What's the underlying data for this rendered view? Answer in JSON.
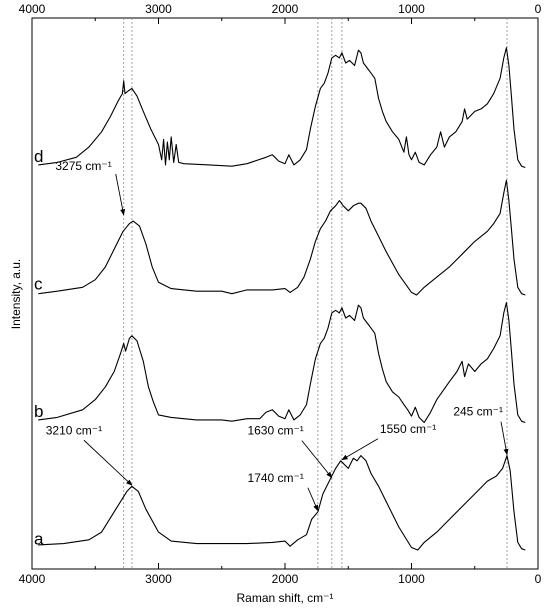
{
  "chart_data": {
    "type": "line",
    "title": "",
    "xlabel": "Raman shift, cm⁻¹",
    "ylabel": "Intensity, a.u.",
    "xlim": [
      4000,
      0
    ],
    "x_reversed": true,
    "x_ticks": [
      4000,
      3000,
      2000,
      1000,
      0
    ],
    "top_axis_ticks": [
      4000,
      3000,
      2000,
      1000,
      0
    ],
    "grid": false,
    "ylim": [
      0,
      4.0
    ],
    "reference_lines_x": [
      3275,
      3210,
      1740,
      1630,
      1550,
      245
    ],
    "series": [
      {
        "name": "a",
        "offset": 0,
        "points": [
          [
            3950,
            0.04
          ],
          [
            3750,
            0.05
          ],
          [
            3550,
            0.08
          ],
          [
            3450,
            0.14
          ],
          [
            3350,
            0.3
          ],
          [
            3250,
            0.46
          ],
          [
            3210,
            0.5
          ],
          [
            3160,
            0.46
          ],
          [
            3100,
            0.32
          ],
          [
            3000,
            0.14
          ],
          [
            2900,
            0.07
          ],
          [
            2700,
            0.05
          ],
          [
            2500,
            0.05
          ],
          [
            2300,
            0.05
          ],
          [
            2100,
            0.06
          ],
          [
            2000,
            0.07
          ],
          [
            1960,
            0.03
          ],
          [
            1900,
            0.08
          ],
          [
            1830,
            0.12
          ],
          [
            1790,
            0.24
          ],
          [
            1740,
            0.3
          ],
          [
            1700,
            0.44
          ],
          [
            1640,
            0.56
          ],
          [
            1600,
            0.64
          ],
          [
            1560,
            0.7
          ],
          [
            1540,
            0.68
          ],
          [
            1500,
            0.64
          ],
          [
            1460,
            0.72
          ],
          [
            1430,
            0.7
          ],
          [
            1400,
            0.74
          ],
          [
            1360,
            0.7
          ],
          [
            1320,
            0.6
          ],
          [
            1260,
            0.5
          ],
          [
            1200,
            0.38
          ],
          [
            1100,
            0.18
          ],
          [
            1000,
            0.02
          ],
          [
            950,
            0.0
          ],
          [
            900,
            0.06
          ],
          [
            800,
            0.14
          ],
          [
            700,
            0.24
          ],
          [
            600,
            0.34
          ],
          [
            500,
            0.44
          ],
          [
            400,
            0.54
          ],
          [
            330,
            0.58
          ],
          [
            280,
            0.64
          ],
          [
            245,
            0.74
          ],
          [
            220,
            0.62
          ],
          [
            190,
            0.3
          ],
          [
            160,
            0.06
          ],
          [
            130,
            0.01
          ],
          [
            100,
            0.0
          ]
        ]
      },
      {
        "name": "b",
        "offset": 1,
        "points": [
          [
            3950,
            0.02
          ],
          [
            3800,
            0.04
          ],
          [
            3600,
            0.1
          ],
          [
            3500,
            0.18
          ],
          [
            3420,
            0.28
          ],
          [
            3350,
            0.4
          ],
          [
            3300,
            0.54
          ],
          [
            3275,
            0.62
          ],
          [
            3260,
            0.56
          ],
          [
            3230,
            0.66
          ],
          [
            3210,
            0.68
          ],
          [
            3170,
            0.64
          ],
          [
            3120,
            0.48
          ],
          [
            3080,
            0.28
          ],
          [
            3040,
            0.16
          ],
          [
            3000,
            0.06
          ],
          [
            2900,
            0.04
          ],
          [
            2700,
            0.02
          ],
          [
            2500,
            0.02
          ],
          [
            2420,
            0.01
          ],
          [
            2300,
            0.03
          ],
          [
            2200,
            0.03
          ],
          [
            2150,
            0.08
          ],
          [
            2100,
            0.1
          ],
          [
            2050,
            0.05
          ],
          [
            2000,
            0.03
          ],
          [
            1970,
            0.1
          ],
          [
            1930,
            0.02
          ],
          [
            1880,
            0.06
          ],
          [
            1830,
            0.14
          ],
          [
            1800,
            0.3
          ],
          [
            1760,
            0.5
          ],
          [
            1720,
            0.62
          ],
          [
            1690,
            0.66
          ],
          [
            1660,
            0.74
          ],
          [
            1630,
            0.86
          ],
          [
            1600,
            0.88
          ],
          [
            1570,
            0.86
          ],
          [
            1550,
            0.9
          ],
          [
            1520,
            0.82
          ],
          [
            1490,
            0.84
          ],
          [
            1450,
            0.8
          ],
          [
            1420,
            0.92
          ],
          [
            1400,
            0.9
          ],
          [
            1380,
            0.82
          ],
          [
            1350,
            0.78
          ],
          [
            1320,
            0.74
          ],
          [
            1290,
            0.7
          ],
          [
            1260,
            0.54
          ],
          [
            1230,
            0.42
          ],
          [
            1200,
            0.32
          ],
          [
            1150,
            0.24
          ],
          [
            1100,
            0.2
          ],
          [
            1060,
            0.14
          ],
          [
            1030,
            0.1
          ],
          [
            1000,
            0.05
          ],
          [
            970,
            0.12
          ],
          [
            940,
            0.04
          ],
          [
            900,
            0.0
          ],
          [
            850,
            0.08
          ],
          [
            800,
            0.18
          ],
          [
            700,
            0.32
          ],
          [
            640,
            0.4
          ],
          [
            600,
            0.48
          ],
          [
            580,
            0.36
          ],
          [
            550,
            0.46
          ],
          [
            500,
            0.4
          ],
          [
            450,
            0.46
          ],
          [
            400,
            0.5
          ],
          [
            350,
            0.58
          ],
          [
            300,
            0.68
          ],
          [
            270,
            0.86
          ],
          [
            250,
            0.94
          ],
          [
            230,
            0.8
          ],
          [
            210,
            0.56
          ],
          [
            190,
            0.3
          ],
          [
            160,
            0.06
          ],
          [
            130,
            0.01
          ],
          [
            100,
            0.0
          ]
        ]
      },
      {
        "name": "c",
        "offset": 2,
        "points": [
          [
            3950,
            0.01
          ],
          [
            3800,
            0.03
          ],
          [
            3600,
            0.06
          ],
          [
            3500,
            0.12
          ],
          [
            3420,
            0.22
          ],
          [
            3350,
            0.36
          ],
          [
            3280,
            0.5
          ],
          [
            3230,
            0.56
          ],
          [
            3200,
            0.58
          ],
          [
            3150,
            0.54
          ],
          [
            3100,
            0.4
          ],
          [
            3050,
            0.22
          ],
          [
            3000,
            0.1
          ],
          [
            2900,
            0.05
          ],
          [
            2700,
            0.03
          ],
          [
            2500,
            0.03
          ],
          [
            2420,
            0.01
          ],
          [
            2300,
            0.04
          ],
          [
            2100,
            0.04
          ],
          [
            2000,
            0.05
          ],
          [
            1960,
            0.02
          ],
          [
            1900,
            0.06
          ],
          [
            1850,
            0.14
          ],
          [
            1800,
            0.28
          ],
          [
            1760,
            0.42
          ],
          [
            1720,
            0.52
          ],
          [
            1680,
            0.58
          ],
          [
            1640,
            0.66
          ],
          [
            1600,
            0.7
          ],
          [
            1570,
            0.74
          ],
          [
            1540,
            0.7
          ],
          [
            1500,
            0.66
          ],
          [
            1460,
            0.7
          ],
          [
            1420,
            0.72
          ],
          [
            1400,
            0.72
          ],
          [
            1360,
            0.68
          ],
          [
            1320,
            0.58
          ],
          [
            1260,
            0.46
          ],
          [
            1200,
            0.34
          ],
          [
            1100,
            0.16
          ],
          [
            1000,
            0.02
          ],
          [
            960,
            0.0
          ],
          [
            900,
            0.06
          ],
          [
            800,
            0.14
          ],
          [
            700,
            0.22
          ],
          [
            600,
            0.32
          ],
          [
            500,
            0.42
          ],
          [
            400,
            0.5
          ],
          [
            350,
            0.56
          ],
          [
            300,
            0.64
          ],
          [
            270,
            0.8
          ],
          [
            250,
            0.9
          ],
          [
            230,
            0.74
          ],
          [
            210,
            0.52
          ],
          [
            190,
            0.28
          ],
          [
            160,
            0.06
          ],
          [
            130,
            0.01
          ],
          [
            100,
            0.0
          ]
        ]
      },
      {
        "name": "d",
        "offset": 3,
        "points": [
          [
            3950,
            0.02
          ],
          [
            3800,
            0.04
          ],
          [
            3650,
            0.08
          ],
          [
            3550,
            0.16
          ],
          [
            3450,
            0.28
          ],
          [
            3380,
            0.4
          ],
          [
            3320,
            0.52
          ],
          [
            3285,
            0.58
          ],
          [
            3275,
            0.68
          ],
          [
            3265,
            0.58
          ],
          [
            3240,
            0.6
          ],
          [
            3210,
            0.62
          ],
          [
            3170,
            0.56
          ],
          [
            3120,
            0.44
          ],
          [
            3060,
            0.3
          ],
          [
            3000,
            0.18
          ],
          [
            2975,
            0.06
          ],
          [
            2960,
            0.22
          ],
          [
            2945,
            0.02
          ],
          [
            2930,
            0.2
          ],
          [
            2915,
            0.06
          ],
          [
            2900,
            0.24
          ],
          [
            2880,
            0.04
          ],
          [
            2860,
            0.18
          ],
          [
            2840,
            0.04
          ],
          [
            2800,
            0.03
          ],
          [
            2600,
            0.02
          ],
          [
            2420,
            0.01
          ],
          [
            2300,
            0.03
          ],
          [
            2150,
            0.08
          ],
          [
            2100,
            0.1
          ],
          [
            2050,
            0.05
          ],
          [
            2000,
            0.03
          ],
          [
            1970,
            0.1
          ],
          [
            1930,
            0.02
          ],
          [
            1880,
            0.06
          ],
          [
            1830,
            0.14
          ],
          [
            1800,
            0.3
          ],
          [
            1760,
            0.48
          ],
          [
            1720,
            0.62
          ],
          [
            1690,
            0.66
          ],
          [
            1660,
            0.74
          ],
          [
            1630,
            0.86
          ],
          [
            1600,
            0.88
          ],
          [
            1570,
            0.86
          ],
          [
            1550,
            0.9
          ],
          [
            1520,
            0.82
          ],
          [
            1490,
            0.84
          ],
          [
            1450,
            0.8
          ],
          [
            1420,
            0.92
          ],
          [
            1400,
            0.9
          ],
          [
            1380,
            0.82
          ],
          [
            1350,
            0.78
          ],
          [
            1320,
            0.74
          ],
          [
            1290,
            0.7
          ],
          [
            1260,
            0.54
          ],
          [
            1230,
            0.44
          ],
          [
            1200,
            0.36
          ],
          [
            1150,
            0.28
          ],
          [
            1100,
            0.22
          ],
          [
            1060,
            0.12
          ],
          [
            1040,
            0.24
          ],
          [
            1020,
            0.1
          ],
          [
            1000,
            0.06
          ],
          [
            970,
            0.12
          ],
          [
            940,
            0.04
          ],
          [
            900,
            0.02
          ],
          [
            850,
            0.1
          ],
          [
            800,
            0.16
          ],
          [
            770,
            0.28
          ],
          [
            740,
            0.16
          ],
          [
            700,
            0.24
          ],
          [
            650,
            0.28
          ],
          [
            600,
            0.36
          ],
          [
            580,
            0.46
          ],
          [
            560,
            0.38
          ],
          [
            500,
            0.44
          ],
          [
            450,
            0.46
          ],
          [
            400,
            0.5
          ],
          [
            350,
            0.58
          ],
          [
            300,
            0.7
          ],
          [
            270,
            0.86
          ],
          [
            250,
            0.94
          ],
          [
            230,
            0.8
          ],
          [
            210,
            0.56
          ],
          [
            190,
            0.3
          ],
          [
            160,
            0.06
          ],
          [
            130,
            0.01
          ],
          [
            100,
            0.0
          ]
        ]
      }
    ],
    "annotations": [
      {
        "text": "3275 cm⁻¹",
        "x": 3275,
        "y": 1.62,
        "series": "b"
      },
      {
        "text": "3210 cm⁻¹",
        "x": 3210,
        "y": 0.5,
        "series": "a"
      },
      {
        "text": "1740 cm⁻¹",
        "x": 1740,
        "y": 0.3,
        "series": "a"
      },
      {
        "text": "1630 cm⁻¹",
        "x": 1630,
        "y": 0.56,
        "series": "a"
      },
      {
        "text": "1550 cm⁻¹",
        "x": 1550,
        "y": 0.7,
        "series": "a"
      },
      {
        "text": "245 cm⁻¹",
        "x": 245,
        "y": 0.74,
        "series": "a"
      }
    ]
  }
}
